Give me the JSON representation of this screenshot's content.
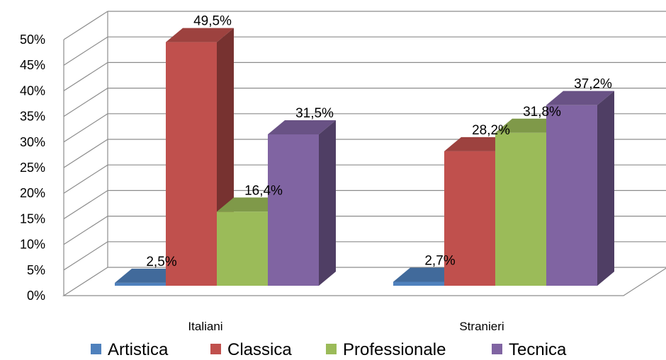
{
  "chart_data": {
    "type": "bar",
    "title": "",
    "xlabel": "",
    "ylabel": "",
    "categories": [
      "Italiani",
      "Stranieri"
    ],
    "series": [
      {
        "name": "Artistica",
        "values": [
          2.5,
          2.7
        ],
        "labels": [
          "2,5%",
          "2,7%"
        ],
        "color": "#4f81bd"
      },
      {
        "name": "Classica",
        "values": [
          49.5,
          28.2
        ],
        "labels": [
          "49,5%",
          "28,2%"
        ],
        "color": "#c0504d"
      },
      {
        "name": "Professionale",
        "values": [
          16.4,
          31.8
        ],
        "labels": [
          "16,4%",
          "31,8%"
        ],
        "color": "#9bbb59"
      },
      {
        "name": "Tecnica",
        "values": [
          31.5,
          37.2
        ],
        "labels": [
          "31,5%",
          "37,2%"
        ],
        "color": "#8064a2"
      }
    ],
    "ylim": [
      0,
      50
    ],
    "yticks": [
      0,
      5,
      10,
      15,
      20,
      25,
      30,
      35,
      40,
      45,
      50
    ],
    "ytick_labels": [
      "0%",
      "5%",
      "10%",
      "15%",
      "20%",
      "25%",
      "30%",
      "35%",
      "40%",
      "45%",
      "50%"
    ],
    "grid": true,
    "style": "3d-clustered-column",
    "legend": {
      "position": "bottom",
      "entries": [
        "Artistica",
        "Classica",
        "Professionale",
        "Tecnica"
      ]
    }
  }
}
